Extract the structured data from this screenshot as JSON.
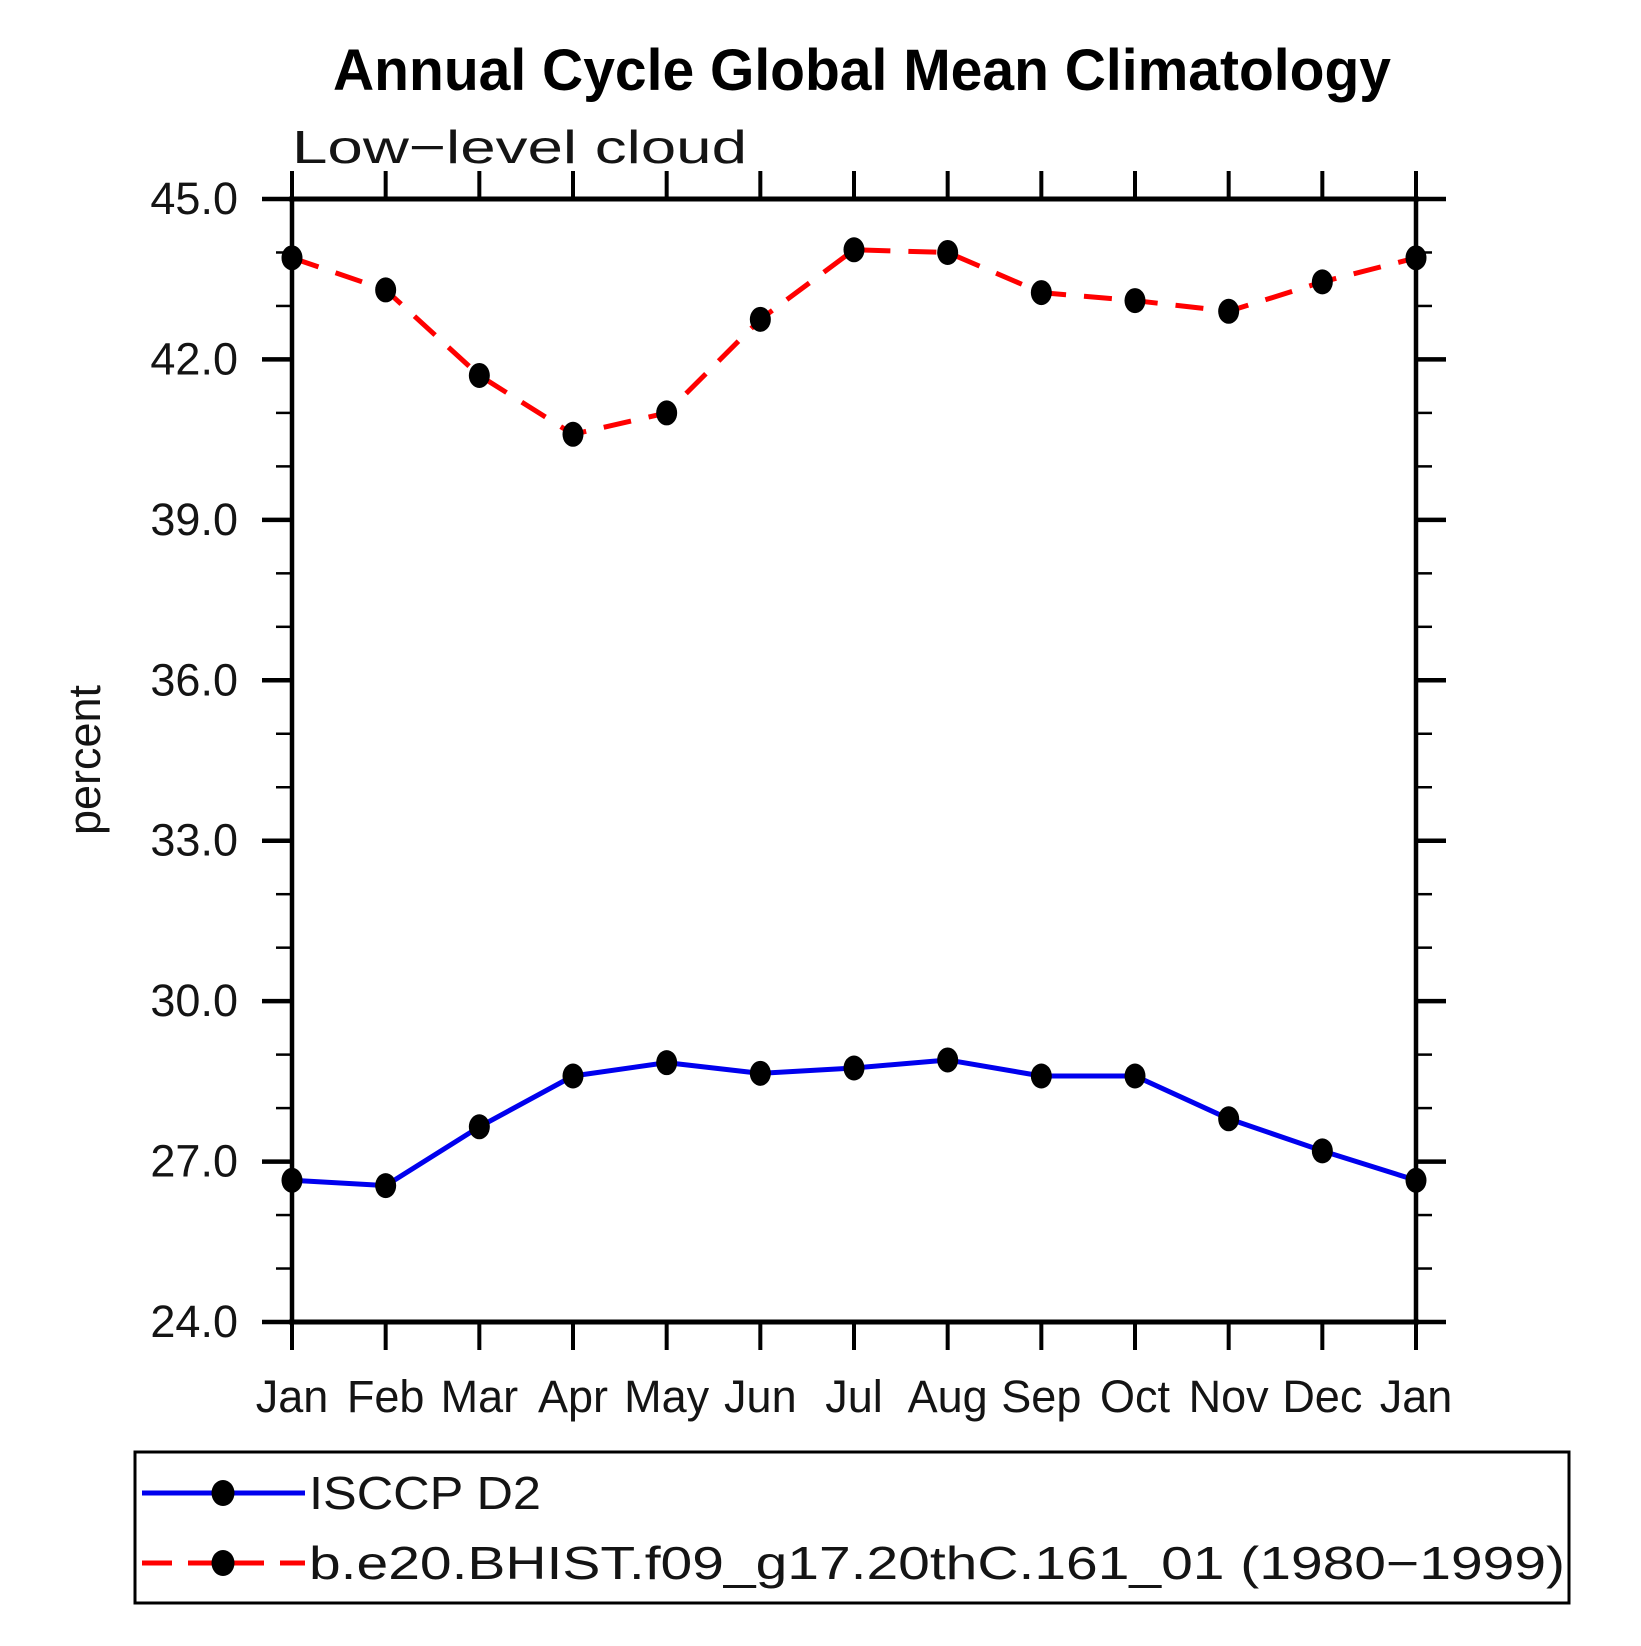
{
  "title": "Annual Cycle Global Mean Climatology",
  "subtitle": "Low−level cloud",
  "ylabel": "percent",
  "legend": {
    "entries": [
      {
        "label": "ISCCP D2"
      },
      {
        "label": "b.e20.BHIST.f09_g17.20thC.161_01 (1980−1999)"
      }
    ]
  },
  "chart_data": {
    "type": "line",
    "categories": [
      "Jan",
      "Feb",
      "Mar",
      "Apr",
      "May",
      "Jun",
      "Jul",
      "Aug",
      "Sep",
      "Oct",
      "Nov",
      "Dec",
      "Jan"
    ],
    "xlabel": "",
    "ylabel": "percent",
    "ylim": [
      24.0,
      45.0
    ],
    "ytick_major_values": [
      45.0,
      42.0,
      39.0,
      36.0,
      33.0,
      30.0,
      27.0,
      24.0
    ],
    "ytick_minor_interval": 1.0,
    "grid": false,
    "legend_position": "bottom",
    "marker": "filled-circle",
    "marker_color": "#000000",
    "series": [
      {
        "name": "ISCCP D2",
        "color": "#0000ee",
        "line_style": "solid",
        "values": [
          26.65,
          26.55,
          27.65,
          28.6,
          28.85,
          28.65,
          28.75,
          28.9,
          28.6,
          28.6,
          27.8,
          27.2,
          26.65
        ]
      },
      {
        "name": "b.e20.BHIST.f09_g17.20thC.161_01 (1980−1999)",
        "color": "#ff0000",
        "line_style": "dashed",
        "values": [
          43.9,
          43.3,
          41.7,
          40.6,
          41.0,
          42.75,
          44.05,
          44.0,
          43.25,
          43.1,
          42.9,
          43.45,
          43.9
        ]
      }
    ]
  }
}
